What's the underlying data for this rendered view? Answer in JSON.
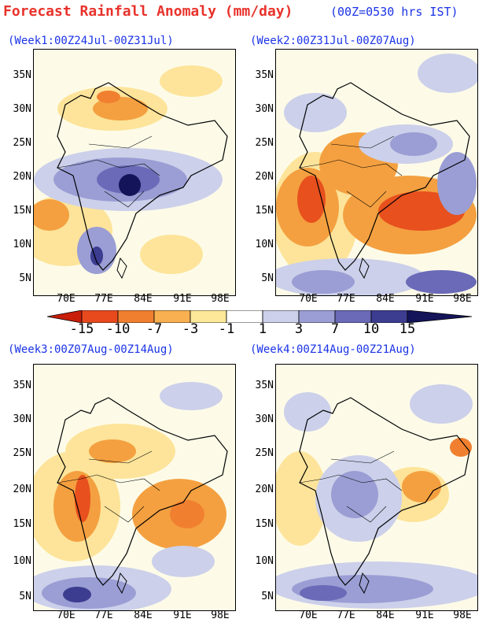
{
  "header": {
    "title": "Forecast Rainfall Anomaly (mm/day)",
    "note": "(00Z=0530 hrs IST)"
  },
  "panels": [
    {
      "title": "(Week1:00Z24Jul-00Z31Jul)"
    },
    {
      "title": "(Week2:00Z31Jul-00Z07Aug)"
    },
    {
      "title": "(Week3:00Z07Aug-00Z14Aug)"
    },
    {
      "title": "(Week4:00Z14Aug-00Z21Aug)"
    }
  ],
  "axes": {
    "lat_labels": [
      "35N",
      "30N",
      "25N",
      "20N",
      "15N",
      "10N",
      "5N"
    ],
    "lon_labels": [
      "70E",
      "77E",
      "84E",
      "91E",
      "98E"
    ]
  },
  "colorbar": {
    "labels": [
      "-15",
      "-10",
      "-7",
      "-3",
      "-1",
      "1",
      "3",
      "7",
      "10",
      "15"
    ],
    "colors": [
      "#c81e0a",
      "#e84a1e",
      "#f08030",
      "#f8b050",
      "#fde89a",
      "#ffffff",
      "#ccd0ea",
      "#9a9ed4",
      "#6a6ab8",
      "#3c3c90",
      "#14145a"
    ]
  },
  "map_colors": {
    "dry_strong": "#e8501e",
    "dry_med": "#f4a040",
    "dry_light": "#fde49a",
    "wet_light": "#ccd0ea",
    "wet_med": "#9a9ed4",
    "wet_strong": "#3c3c90",
    "wet_vstrong": "#14145a"
  }
}
